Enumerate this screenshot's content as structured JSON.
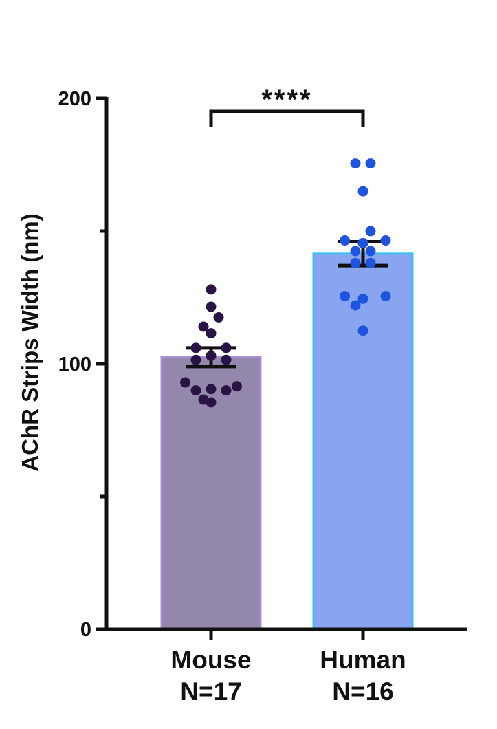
{
  "chart_data": {
    "type": "bar",
    "title": "",
    "xlabel": "",
    "ylabel": "AChR Strips Width (nm)",
    "ylim": [
      0,
      200
    ],
    "ytick_labels": [
      {
        "value": 0,
        "label": "0"
      },
      {
        "value": 100,
        "label": "100"
      },
      {
        "value": 200,
        "label": "200"
      }
    ],
    "yticks_minor": [
      50,
      150
    ],
    "categories": [
      {
        "name": "Mouse",
        "n_label": "N=17"
      },
      {
        "name": "Human",
        "n_label": "N=16"
      }
    ],
    "bars": [
      {
        "category": "Mouse",
        "mean": 102.5,
        "sem": 3.5,
        "fill": "#9387ab",
        "edge": "#a88ed8",
        "point_color": "#2a1446",
        "points": [
          {
            "offset": 0,
            "y": 128
          },
          {
            "offset": 0,
            "y": 121.5
          },
          {
            "offset": -0.5,
            "y": 114
          },
          {
            "offset": 0.5,
            "y": 117.5
          },
          {
            "offset": 0,
            "y": 111.5
          },
          {
            "offset": -1,
            "y": 106
          },
          {
            "offset": 1,
            "y": 106
          },
          {
            "offset": -1,
            "y": 101.5
          },
          {
            "offset": 1,
            "y": 101.5
          },
          {
            "offset": 0,
            "y": 103
          },
          {
            "offset": -1.7,
            "y": 93
          },
          {
            "offset": 1.7,
            "y": 91.5
          },
          {
            "offset": -1,
            "y": 90
          },
          {
            "offset": 0,
            "y": 90.5
          },
          {
            "offset": 1,
            "y": 90
          },
          {
            "offset": -0.5,
            "y": 86.5
          },
          {
            "offset": 0,
            "y": 85.5
          }
        ]
      },
      {
        "category": "Human",
        "mean": 141.5,
        "sem": 4.5,
        "fill": "#8aa5f0",
        "edge": "#3cc0f0",
        "point_color": "#1f54e0",
        "points": [
          {
            "offset": -0.5,
            "y": 175.5
          },
          {
            "offset": 0.5,
            "y": 175.5
          },
          {
            "offset": 0,
            "y": 165
          },
          {
            "offset": 0.5,
            "y": 150
          },
          {
            "offset": -1.2,
            "y": 146.5
          },
          {
            "offset": 1.5,
            "y": 146.5
          },
          {
            "offset": 0,
            "y": 145.5
          },
          {
            "offset": -0.5,
            "y": 142.5
          },
          {
            "offset": 0.5,
            "y": 142.5
          },
          {
            "offset": -0.5,
            "y": 138
          },
          {
            "offset": 0.5,
            "y": 138
          },
          {
            "offset": -1.2,
            "y": 125.5
          },
          {
            "offset": 1.5,
            "y": 125.5
          },
          {
            "offset": 0,
            "y": 124.5
          },
          {
            "offset": -0.5,
            "y": 122
          },
          {
            "offset": 0,
            "y": 112.5
          }
        ]
      }
    ],
    "significance": {
      "from": "Mouse",
      "to": "Human",
      "label": "****"
    }
  }
}
